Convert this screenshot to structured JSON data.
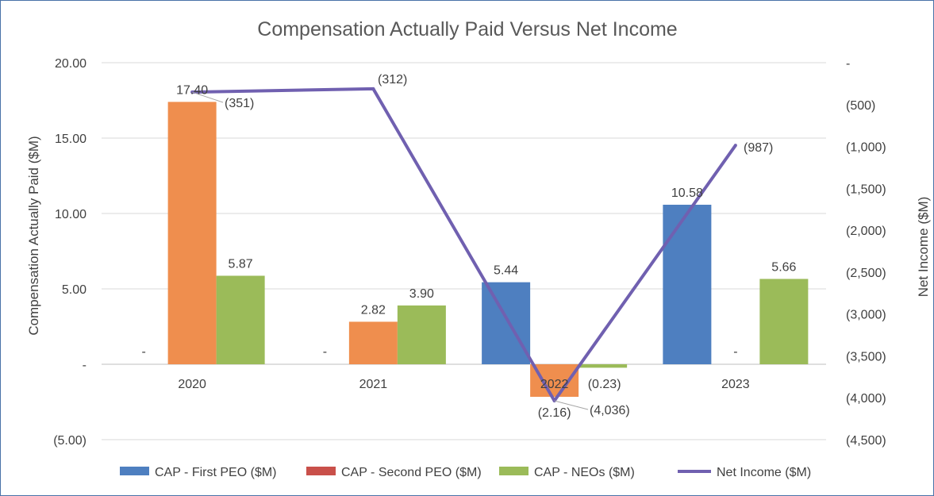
{
  "chart_data": {
    "type": "bar",
    "title": "Compensation Actually Paid Versus Net Income",
    "xlabel": "",
    "ylabel": "Compensation Actually Paid ($M)",
    "y2label": "Net Income ($M)",
    "categories": [
      "2020",
      "2021",
      "2022",
      "2023"
    ],
    "ylim": [
      -5,
      20
    ],
    "yticks": [
      -5,
      0,
      5,
      10,
      15,
      20
    ],
    "ytick_labels": [
      "(5.00)",
      "-",
      "5.00",
      "10.00",
      "15.00",
      "20.00"
    ],
    "y2lim": [
      -4500,
      0
    ],
    "y2ticks": [
      0,
      -500,
      -1000,
      -1500,
      -2000,
      -2500,
      -3000,
      -3500,
      -4000,
      -4500
    ],
    "y2tick_labels": [
      "-",
      "(500)",
      "(1,000)",
      "(1,500)",
      "(2,000)",
      "(2,500)",
      "(3,000)",
      "(3,500)",
      "(4,000)",
      "(4,500)"
    ],
    "series": [
      {
        "name": "CAP - First PEO ($M)",
        "kind": "bar",
        "color": "#4e7fc0",
        "values": [
          0,
          0,
          5.44,
          10.58
        ],
        "labels": [
          "-",
          "-",
          "5.44",
          "10.58"
        ]
      },
      {
        "name": "CAP - Second PEO ($M)",
        "kind": "bar",
        "color": "#ef8e4e",
        "legend_color": "#c9504a",
        "values": [
          17.4,
          2.82,
          -2.16,
          0
        ],
        "labels": [
          "17.40",
          "2.82",
          "(2.16)",
          "-"
        ]
      },
      {
        "name": "CAP - NEOs ($M)",
        "kind": "bar",
        "color": "#9bbb59",
        "values": [
          5.87,
          3.9,
          -0.23,
          5.66
        ],
        "labels": [
          "5.87",
          "3.90",
          "(0.23)",
          "5.66"
        ]
      },
      {
        "name": "Net Income ($M)",
        "kind": "line",
        "axis": "secondary",
        "color": "#7060b0",
        "values": [
          -351,
          -312,
          -4036,
          -987
        ],
        "labels": [
          "(351)",
          "(312)",
          "(4,036)",
          "(987)"
        ]
      }
    ],
    "legend": "bottom",
    "grid": true
  }
}
